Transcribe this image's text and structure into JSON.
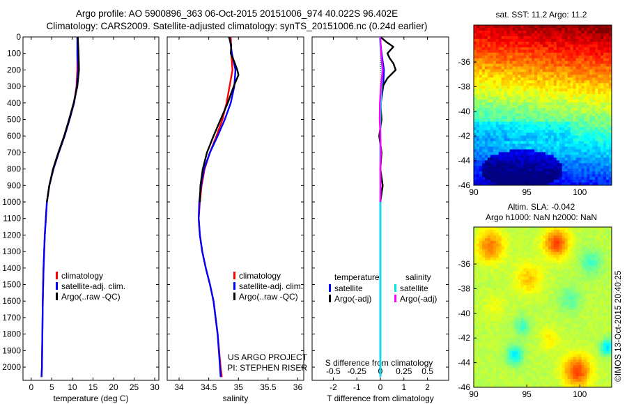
{
  "header": {
    "line1": "Argo profile: AO 5900896_363 06-Oct-2015 20151006_974 40.022S 96.402E",
    "line2": "Climatology: CARS2009. Satellite-adjusted climatology: synTS_20151006.nc (0.24d earlier)"
  },
  "credit": {
    "line1": "US ARGO PROJECT",
    "line2": "PI: STEPHEN RISER"
  },
  "watermark": "©IMOS 13-Oct-2015 20:40:25",
  "colors": {
    "climatology": "#ff0000",
    "satellite": "#0000ff",
    "argo": "#000000",
    "sal_satellite": "#00e5e5",
    "sal_argo": "#ff00ff"
  },
  "chart_data": [
    {
      "type": "line",
      "id": "temperature",
      "xlabel": "temperature (deg C)",
      "ylabel": "",
      "xlim": [
        -2,
        31
      ],
      "ylim": [
        0,
        2080
      ],
      "xticks": [
        0,
        5,
        10,
        15,
        20,
        25,
        30
      ],
      "yticks": [
        0,
        100,
        200,
        300,
        400,
        500,
        600,
        700,
        800,
        900,
        1000,
        1100,
        1200,
        1300,
        1400,
        1500,
        1600,
        1700,
        1800,
        1900,
        2000
      ],
      "legend": [
        "climatology",
        "satellite-adj. clim.",
        "Argo(..raw -QC)"
      ],
      "series": [
        {
          "name": "climatology",
          "color": "#ff0000",
          "depth": [
            0,
            100,
            200,
            300,
            400,
            500,
            600,
            700,
            800,
            900,
            1000,
            1200,
            1400,
            1600,
            1800,
            2000,
            2060
          ],
          "values": [
            11.3,
            11.2,
            11.2,
            11.0,
            10.4,
            9.3,
            8.1,
            6.7,
            5.4,
            4.4,
            3.8,
            3.3,
            3.0,
            2.8,
            2.7,
            2.6,
            2.5
          ]
        },
        {
          "name": "satellite-adj. clim.",
          "color": "#0000ff",
          "depth": [
            0,
            100,
            200,
            300,
            400,
            500,
            600,
            700,
            800,
            900,
            1000,
            1200,
            1400,
            1600,
            1800,
            2000,
            2060
          ],
          "values": [
            11.2,
            11.2,
            11.4,
            11.1,
            10.4,
            9.3,
            8.1,
            6.7,
            5.4,
            4.4,
            3.8,
            3.3,
            3.0,
            2.8,
            2.7,
            2.6,
            2.5
          ]
        },
        {
          "name": "Argo(..raw -QC)",
          "color": "#000000",
          "depth": [
            0,
            100,
            200,
            300,
            400,
            500,
            600,
            700,
            800,
            900,
            1000
          ],
          "values": [
            11.3,
            11.5,
            11.6,
            11.2,
            10.3,
            9.2,
            8.0,
            6.6,
            5.3,
            4.4,
            3.8
          ]
        }
      ]
    },
    {
      "type": "line",
      "id": "salinity",
      "xlabel": "salinity",
      "ylabel": "",
      "xlim": [
        33.8,
        36.1
      ],
      "ylim": [
        0,
        2080
      ],
      "xticks": [
        34,
        34.5,
        35,
        35.5,
        36
      ],
      "legend": [
        "climatology",
        "satellite-adj. clim.",
        "Argo(..raw -QC)"
      ],
      "series": [
        {
          "name": "climatology",
          "color": "#ff0000",
          "depth": [
            0,
            100,
            200,
            300,
            400,
            500,
            600,
            700,
            800,
            900,
            1000,
            1100,
            1200,
            1300,
            1400,
            1500,
            1600,
            1800,
            2000,
            2060
          ],
          "values": [
            34.87,
            34.88,
            34.9,
            34.85,
            34.8,
            34.73,
            34.63,
            34.52,
            34.43,
            34.38,
            34.35,
            34.33,
            34.35,
            34.39,
            34.45,
            34.52,
            34.58,
            34.65,
            34.7,
            34.72
          ]
        },
        {
          "name": "satellite-adj. clim.",
          "color": "#0000ff",
          "depth": [
            0,
            100,
            200,
            300,
            400,
            500,
            600,
            700,
            800,
            900,
            1000,
            1100,
            1200,
            1300,
            1400,
            1500,
            1600,
            1800,
            2000,
            2060
          ],
          "values": [
            34.85,
            34.89,
            34.95,
            34.93,
            34.87,
            34.77,
            34.65,
            34.52,
            34.42,
            34.37,
            34.34,
            34.33,
            34.35,
            34.39,
            34.45,
            34.52,
            34.58,
            34.65,
            34.69,
            34.7
          ]
        },
        {
          "name": "Argo(..raw -QC)",
          "color": "#000000",
          "depth": [
            0,
            50,
            100,
            150,
            200,
            230,
            300,
            400,
            500,
            600,
            700,
            800,
            900,
            1000
          ],
          "values": [
            34.84,
            34.88,
            34.87,
            34.93,
            34.98,
            35.0,
            34.92,
            34.82,
            34.7,
            34.58,
            34.47,
            34.4,
            34.36,
            34.35
          ]
        }
      ]
    },
    {
      "type": "line",
      "id": "difference",
      "xlabel": "T difference from climatology",
      "xlabel2": "S difference from climatology",
      "xlim": [
        -2.9,
        2.9
      ],
      "ylim": [
        0,
        2080
      ],
      "xticks": [
        -2,
        -1,
        0,
        1,
        2
      ],
      "xticks2": [
        -0.5,
        -0.25,
        0,
        0.25,
        0.5
      ],
      "xticks2_scale": 4,
      "legend_headings": [
        "temperature",
        "salinity"
      ],
      "legend": [
        "satellite",
        "Argo(-adj)",
        "satellite",
        "Argo(-adj)"
      ],
      "series": [
        {
          "name": "temperature satellite",
          "color": "#0000ff",
          "depth": [
            0,
            100,
            200,
            300,
            400,
            500,
            600,
            700,
            800,
            900,
            1000,
            1200,
            1400,
            1600,
            1800,
            2000,
            2060
          ],
          "values": [
            -0.02,
            0.05,
            0.15,
            0.12,
            0.02,
            0.0,
            0.0,
            0.0,
            0.0,
            0.0,
            0.0,
            0.0,
            0.0,
            0.0,
            0.0,
            0.0,
            0.0
          ]
        },
        {
          "name": "temperature Argo(-adj)",
          "color": "#000000",
          "depth": [
            0,
            30,
            60,
            100,
            130,
            160,
            200,
            250,
            300,
            400,
            500,
            600,
            700,
            800,
            900,
            1000
          ],
          "values": [
            0.0,
            0.25,
            0.55,
            0.3,
            0.4,
            0.55,
            0.65,
            0.3,
            0.1,
            0.0,
            0.05,
            -0.05,
            0.05,
            0.0,
            0.1,
            0.0
          ]
        },
        {
          "name": "salinity satellite",
          "color": "#00e5e5",
          "depth": [
            0,
            100,
            200,
            300,
            400,
            500,
            800,
            1200,
            1600,
            2000,
            2060
          ],
          "values": [
            -0.03,
            0.02,
            0.08,
            0.05,
            0.02,
            0.0,
            0.0,
            0.0,
            0.0,
            0.0,
            0.0
          ]
        },
        {
          "name": "salinity Argo(-adj)",
          "color": "#ff00ff",
          "depth": [
            0,
            100,
            200,
            250,
            300,
            400,
            500,
            600,
            700,
            800,
            900,
            1000
          ],
          "values": [
            0.0,
            0.03,
            0.1,
            0.06,
            0.02,
            -0.02,
            -0.03,
            0.0,
            0.02,
            0.0,
            0.01,
            0.0
          ]
        }
      ]
    },
    {
      "type": "heatmap",
      "id": "sst-map",
      "title": "sat. SST: 11.2 Argo: 11.2",
      "xlim": [
        90,
        103
      ],
      "ylim": [
        -46,
        -33
      ],
      "xticks": [
        90,
        95,
        100
      ],
      "yticks": [
        -36,
        -38,
        -40,
        -42,
        -44,
        -46
      ]
    },
    {
      "type": "heatmap",
      "id": "sla-map",
      "title": "Altim. SLA: -0.042",
      "subtitle": "Argo h1000: NaN h2000: NaN",
      "xlim": [
        90,
        103
      ],
      "ylim": [
        -46,
        -33
      ],
      "xticks": [
        90,
        95,
        100
      ],
      "yticks": [
        -36,
        -38,
        -40,
        -42,
        -44,
        -46
      ]
    }
  ]
}
